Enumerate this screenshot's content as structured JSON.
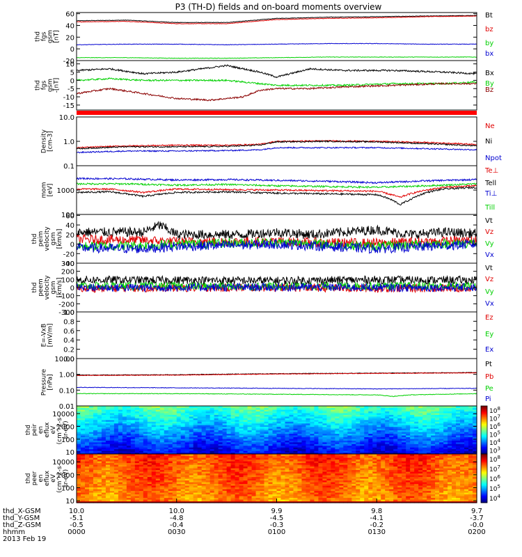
{
  "title": "P3 (TH-D) fields and on-board moments overview",
  "colors": {
    "black": "#000000",
    "red": "#e00000",
    "green": "#00d000",
    "blue": "#0000d0",
    "darkred": "#8b0000",
    "separator": "#ff0000"
  },
  "x_axis": {
    "rows": [
      {
        "label": "thd_X-GSM",
        "values": [
          "10.0",
          "10.0",
          "9.9",
          "9.8",
          "9.7"
        ]
      },
      {
        "label": "thd_Y-GSM",
        "values": [
          "-5.1",
          "-4.8",
          "-4.5",
          "-4.1",
          "-3.7"
        ]
      },
      {
        "label": "thd_Z-GSM",
        "values": [
          "-0.5",
          "-0.4",
          "-0.3",
          "-0.2",
          "-0.0"
        ]
      },
      {
        "label": "hhmm",
        "values": [
          "0000",
          "0030",
          "0100",
          "0130",
          "0200"
        ]
      }
    ],
    "date": "2013 Feb 19",
    "t_min": 0,
    "t_max": 120
  },
  "chart_data": [
    {
      "type": "line",
      "ylabel": [
        "thd",
        "fgs",
        "gsm",
        "[nT]"
      ],
      "yscale": "linear",
      "ylim": [
        -20,
        62
      ],
      "yticks": [
        {
          "v": 60,
          "t": "60"
        },
        {
          "v": 40,
          "t": "40"
        },
        {
          "v": 20,
          "t": "20"
        },
        {
          "v": 0,
          "t": "0"
        },
        {
          "v": -20,
          "t": "-20"
        }
      ],
      "series": [
        {
          "name": "Bt",
          "color": "black",
          "t": [
            0,
            15,
            30,
            45,
            60,
            75,
            90,
            105,
            120
          ],
          "values": [
            48,
            49,
            45,
            45,
            52,
            54,
            55,
            56,
            57
          ]
        },
        {
          "name": "bz",
          "color": "red",
          "t": [
            0,
            15,
            30,
            45,
            60,
            75,
            90,
            105,
            120
          ],
          "values": [
            46,
            47,
            43,
            43,
            50,
            52,
            53,
            55,
            56
          ]
        },
        {
          "name": "by",
          "color": "green",
          "t": [
            0,
            15,
            30,
            45,
            60,
            75,
            90,
            105,
            120
          ],
          "values": [
            -15,
            -15,
            -16,
            -16,
            -15,
            -14,
            -14,
            -14,
            -14
          ]
        },
        {
          "name": "bx",
          "color": "blue",
          "t": [
            0,
            15,
            30,
            45,
            60,
            75,
            90,
            105,
            120
          ],
          "values": [
            7,
            8,
            8,
            7,
            8,
            9,
            9,
            8,
            8
          ]
        }
      ],
      "noise": 0.4
    },
    {
      "type": "line",
      "ylabel": [
        "thd",
        "fgs",
        "gsm",
        "-[nT]"
      ],
      "yscale": "linear",
      "ylim": [
        -18,
        12
      ],
      "yticks": [
        {
          "v": 10,
          "t": "10"
        },
        {
          "v": 5,
          "t": "5"
        },
        {
          "v": 0,
          "t": "0"
        },
        {
          "v": -5,
          "t": "-5"
        },
        {
          "v": -10,
          "t": "-10"
        },
        {
          "v": -15,
          "t": "-15"
        }
      ],
      "series": [
        {
          "name": "Bx",
          "color": "black",
          "t": [
            0,
            10,
            20,
            30,
            45,
            55,
            60,
            70,
            80,
            95,
            110,
            120
          ],
          "values": [
            6,
            7,
            4,
            5,
            9,
            5,
            2,
            7,
            6,
            6,
            5,
            4
          ]
        },
        {
          "name": "By",
          "color": "green",
          "t": [
            0,
            10,
            20,
            30,
            45,
            55,
            60,
            70,
            80,
            95,
            110,
            120
          ],
          "values": [
            0,
            1,
            0,
            0,
            0,
            -2,
            -3,
            -3,
            -3,
            -2,
            -2,
            -1
          ]
        },
        {
          "name": "Bz",
          "color": "darkred",
          "t": [
            0,
            10,
            20,
            30,
            40,
            50,
            55,
            60,
            70,
            80,
            95,
            110,
            120
          ],
          "values": [
            -8,
            -5,
            -8,
            -11,
            -12,
            -10,
            -6,
            -5,
            -5,
            -4,
            -3,
            -2,
            -2
          ]
        }
      ],
      "noise": 0.5
    },
    {
      "type": "line",
      "ylabel": [
        "Density",
        "[cm-3]"
      ],
      "yscale": "log",
      "ylim": [
        0.1,
        10
      ],
      "yticks": [
        {
          "v": 10,
          "t": "10.0"
        },
        {
          "v": 1,
          "t": "1.0"
        },
        {
          "v": 0.1,
          "t": "0.1"
        }
      ],
      "series": [
        {
          "name": "Ne",
          "color": "red",
          "t": [
            0,
            15,
            30,
            45,
            55,
            60,
            75,
            90,
            105,
            120
          ],
          "values": [
            0.55,
            0.65,
            0.7,
            0.7,
            0.75,
            1.0,
            1.05,
            1.0,
            0.9,
            0.75
          ]
        },
        {
          "name": "Ni",
          "color": "black",
          "t": [
            0,
            15,
            30,
            45,
            55,
            60,
            75,
            90,
            105,
            120
          ],
          "values": [
            0.5,
            0.6,
            0.6,
            0.62,
            0.7,
            0.95,
            1.0,
            0.95,
            0.8,
            0.65
          ]
        },
        {
          "name": "Npot",
          "color": "blue",
          "t": [
            0,
            15,
            30,
            45,
            55,
            60,
            75,
            90,
            105,
            120
          ],
          "values": [
            0.35,
            0.4,
            0.4,
            0.42,
            0.45,
            0.55,
            0.55,
            0.55,
            0.5,
            0.45
          ]
        }
      ],
      "noise": 0.03
    },
    {
      "type": "line",
      "ylabel": [
        "mom",
        "[eV]"
      ],
      "yscale": "log",
      "ylim": [
        100,
        10000
      ],
      "yticks": [
        {
          "v": 10000,
          "t": ""
        },
        {
          "v": 1000,
          "t": "1000"
        },
        {
          "v": 100,
          "t": "100"
        }
      ],
      "series": [
        {
          "name": "Te⊥",
          "color": "red",
          "t": [
            0,
            10,
            20,
            30,
            45,
            60,
            75,
            90,
            97,
            100,
            105,
            110,
            120
          ],
          "values": [
            1100,
            1100,
            800,
            1100,
            1050,
            1000,
            950,
            900,
            500,
            700,
            1000,
            1300,
            1500
          ]
        },
        {
          "name": "Tell",
          "color": "black",
          "t": [
            0,
            10,
            20,
            30,
            45,
            60,
            75,
            90,
            97,
            100,
            105,
            110,
            120
          ],
          "values": [
            800,
            850,
            550,
            800,
            850,
            750,
            700,
            650,
            250,
            400,
            800,
            1100,
            1300
          ]
        },
        {
          "name": "Ti⊥",
          "color": "blue",
          "t": [
            0,
            15,
            30,
            45,
            60,
            75,
            90,
            105,
            120
          ],
          "values": [
            3000,
            2900,
            2600,
            2700,
            2500,
            2300,
            2000,
            2400,
            2700
          ]
        },
        {
          "name": "Till",
          "color": "green",
          "t": [
            0,
            15,
            30,
            45,
            60,
            75,
            90,
            105,
            120
          ],
          "values": [
            1800,
            1800,
            1600,
            1700,
            1500,
            1400,
            1300,
            1500,
            1800
          ]
        }
      ],
      "noise": 0.04
    },
    {
      "type": "line",
      "ylabel": [
        "thd",
        "peim",
        "velocity",
        "gsm",
        "[km/s]"
      ],
      "yscale": "linear",
      "ylim": [
        -40,
        62
      ],
      "yticks": [
        {
          "v": 60,
          "t": "60"
        },
        {
          "v": 40,
          "t": "40"
        },
        {
          "v": 20,
          "t": "20"
        },
        {
          "v": 0,
          "t": "0"
        },
        {
          "v": -20,
          "t": "-20"
        },
        {
          "v": -40,
          "t": "-40"
        }
      ],
      "series": [
        {
          "name": "Vt",
          "color": "black",
          "t": [
            0,
            20,
            25,
            30,
            50,
            60,
            70,
            90,
            100,
            110,
            120
          ],
          "values": [
            25,
            25,
            40,
            20,
            20,
            25,
            20,
            30,
            20,
            25,
            22
          ]
        },
        {
          "name": "Vz",
          "color": "red",
          "t": [
            0,
            20,
            30,
            45,
            60,
            75,
            90,
            105,
            120
          ],
          "values": [
            10,
            8,
            5,
            5,
            5,
            3,
            2,
            5,
            8
          ]
        },
        {
          "name": "Vy",
          "color": "green",
          "t": [
            0,
            20,
            30,
            45,
            60,
            75,
            90,
            105,
            120
          ],
          "values": [
            -5,
            -3,
            0,
            2,
            3,
            0,
            -5,
            0,
            2
          ]
        },
        {
          "name": "Vx",
          "color": "blue",
          "t": [
            0,
            20,
            30,
            45,
            60,
            75,
            90,
            105,
            120
          ],
          "values": [
            -8,
            -10,
            -5,
            -3,
            0,
            -5,
            -10,
            -5,
            0
          ]
        }
      ],
      "noise": 10
    },
    {
      "type": "line",
      "ylabel": [
        "thd",
        "peem",
        "velocity",
        "gsm",
        "[km/s]"
      ],
      "yscale": "linear",
      "ylim": [
        -300,
        300
      ],
      "yticks": [
        {
          "v": 300,
          "t": "300"
        },
        {
          "v": 200,
          "t": "200"
        },
        {
          "v": 100,
          "t": "100"
        },
        {
          "v": 0,
          "t": "0"
        },
        {
          "v": -100,
          "t": "-100"
        },
        {
          "v": -200,
          "t": "-200"
        },
        {
          "v": -300,
          "t": "-300"
        }
      ],
      "series": [
        {
          "name": "Vt",
          "color": "black",
          "t": [
            0,
            30,
            60,
            90,
            120
          ],
          "values": [
            95,
            90,
            85,
            95,
            90
          ]
        },
        {
          "name": "Vz",
          "color": "red",
          "t": [
            0,
            30,
            60,
            90,
            120
          ],
          "values": [
            -10,
            -5,
            0,
            -10,
            -5
          ]
        },
        {
          "name": "Vy",
          "color": "green",
          "t": [
            0,
            30,
            60,
            90,
            120
          ],
          "values": [
            20,
            15,
            15,
            20,
            15
          ]
        },
        {
          "name": "Vx",
          "color": "blue",
          "t": [
            0,
            30,
            60,
            90,
            120
          ],
          "values": [
            0,
            0,
            5,
            0,
            0
          ]
        }
      ],
      "noise": 50
    },
    {
      "type": "line",
      "ylabel": [
        "E=-VxB",
        "[mV/m]"
      ],
      "yscale": "linear",
      "ylim": [
        0,
        1
      ],
      "yticks": [
        {
          "v": 1.0,
          "t": "1.0"
        },
        {
          "v": 0.8,
          "t": "0.8"
        },
        {
          "v": 0.6,
          "t": "0.6"
        },
        {
          "v": 0.4,
          "t": "0.4"
        },
        {
          "v": 0.2,
          "t": "0.2"
        },
        {
          "v": 0.0,
          "t": "0.0"
        }
      ],
      "series": [
        {
          "name": "Ez",
          "color": "red",
          "t": [],
          "values": []
        },
        {
          "name": "Ey",
          "color": "green",
          "t": [],
          "values": []
        },
        {
          "name": "Ex",
          "color": "blue",
          "t": [],
          "values": []
        }
      ],
      "noise": 0
    },
    {
      "type": "line",
      "ylabel": [
        "Pressure",
        "[nPa]"
      ],
      "yscale": "log",
      "ylim": [
        0.01,
        10
      ],
      "yticks": [
        {
          "v": 10,
          "t": "10.00"
        },
        {
          "v": 1,
          "t": "1.00"
        },
        {
          "v": 0.1,
          "t": "0.10"
        },
        {
          "v": 0.01,
          "t": "0.01"
        }
      ],
      "series": [
        {
          "name": "Pt",
          "color": "black",
          "t": [
            0,
            30,
            60,
            90,
            120
          ],
          "values": [
            0.9,
            0.95,
            1.1,
            1.2,
            1.3
          ]
        },
        {
          "name": "Pb",
          "color": "red",
          "t": [
            0,
            30,
            60,
            90,
            120
          ],
          "values": [
            0.85,
            0.9,
            1.05,
            1.15,
            1.25
          ]
        },
        {
          "name": "Pe",
          "color": "green",
          "t": [
            0,
            30,
            60,
            90,
            95,
            100,
            120
          ],
          "values": [
            0.06,
            0.06,
            0.055,
            0.05,
            0.04,
            0.05,
            0.06
          ]
        },
        {
          "name": "Pi",
          "color": "blue",
          "t": [
            0,
            30,
            60,
            90,
            120
          ],
          "values": [
            0.15,
            0.14,
            0.13,
            0.12,
            0.13
          ]
        }
      ],
      "noise": 0.02
    },
    {
      "type": "heatmap",
      "ylabel": [
        "thd",
        "peir",
        "en",
        "eflux",
        "eV",
        "(cm^2-s-",
        "sr-eV)"
      ],
      "yscale": "log",
      "ylim": [
        7,
        40000
      ],
      "yticks": [
        {
          "v": 10000,
          "t": "10000"
        },
        {
          "v": 1000,
          "t": "1000"
        },
        {
          "v": 100,
          "t": "100"
        },
        {
          "v": 10,
          "t": "10"
        }
      ],
      "colorbar": {
        "ticks": [
          "10^3",
          "10^4",
          "10^5",
          "10^6",
          "10^7",
          "10^8"
        ],
        "min_exp": 3,
        "max_exp": 8
      },
      "description_profile": {
        "low_energy_level": 3.5,
        "high_energy_level": 5.3
      }
    },
    {
      "type": "heatmap",
      "ylabel": [
        "thd",
        "peer",
        "en",
        "eflux",
        "eV",
        "(cm^2-s-",
        "sr-eV)"
      ],
      "yscale": "log",
      "ylim": [
        7,
        40000
      ],
      "yticks": [
        {
          "v": 10000,
          "t": "10000"
        },
        {
          "v": 1000,
          "t": "1000"
        },
        {
          "v": 100,
          "t": "100"
        },
        {
          "v": 10,
          "t": "10"
        }
      ],
      "colorbar": {
        "ticks": [
          "10^4",
          "10^5",
          "10^6",
          "10^7",
          "10^8"
        ],
        "min_exp": 3.5,
        "max_exp": 8.5
      },
      "description_profile": {
        "low_energy_level": 7.2,
        "high_energy_level": 7.6
      }
    }
  ]
}
